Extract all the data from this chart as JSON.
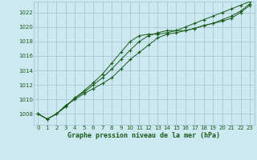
{
  "title": "Graphe pression niveau de la mer (hPa)",
  "background_color": "#cce8f0",
  "plot_bg_color": "#cce8f0",
  "grid_color": "#aaccd8",
  "line_color": "#1a5c1a",
  "xlim": [
    -0.5,
    23.5
  ],
  "ylim": [
    1006.5,
    1023.5
  ],
  "yticks": [
    1008,
    1010,
    1012,
    1014,
    1016,
    1018,
    1020,
    1022
  ],
  "xticks": [
    0,
    1,
    2,
    3,
    4,
    5,
    6,
    7,
    8,
    9,
    10,
    11,
    12,
    13,
    14,
    15,
    16,
    17,
    18,
    19,
    20,
    21,
    22,
    23
  ],
  "series1": [
    1008.0,
    1007.3,
    1008.0,
    1009.2,
    1010.0,
    1010.8,
    1011.5,
    1012.2,
    1013.0,
    1014.2,
    1015.5,
    1016.5,
    1017.5,
    1018.5,
    1019.0,
    1019.2,
    1019.5,
    1019.8,
    1020.2,
    1020.5,
    1020.8,
    1021.2,
    1022.0,
    1023.0
  ],
  "series2": [
    1008.0,
    1007.3,
    1008.0,
    1009.0,
    1010.2,
    1011.0,
    1012.0,
    1013.0,
    1014.2,
    1015.5,
    1016.8,
    1018.0,
    1018.8,
    1019.2,
    1019.5,
    1019.5,
    1019.5,
    1019.8,
    1020.2,
    1020.5,
    1021.0,
    1021.5,
    1022.2,
    1023.2
  ],
  "series3": [
    1008.0,
    1007.3,
    1008.0,
    1009.0,
    1010.2,
    1011.2,
    1012.3,
    1013.5,
    1015.0,
    1016.5,
    1018.0,
    1018.8,
    1019.0,
    1019.0,
    1019.2,
    1019.5,
    1020.0,
    1020.5,
    1021.0,
    1021.5,
    1022.0,
    1022.5,
    1023.0,
    1023.5
  ]
}
